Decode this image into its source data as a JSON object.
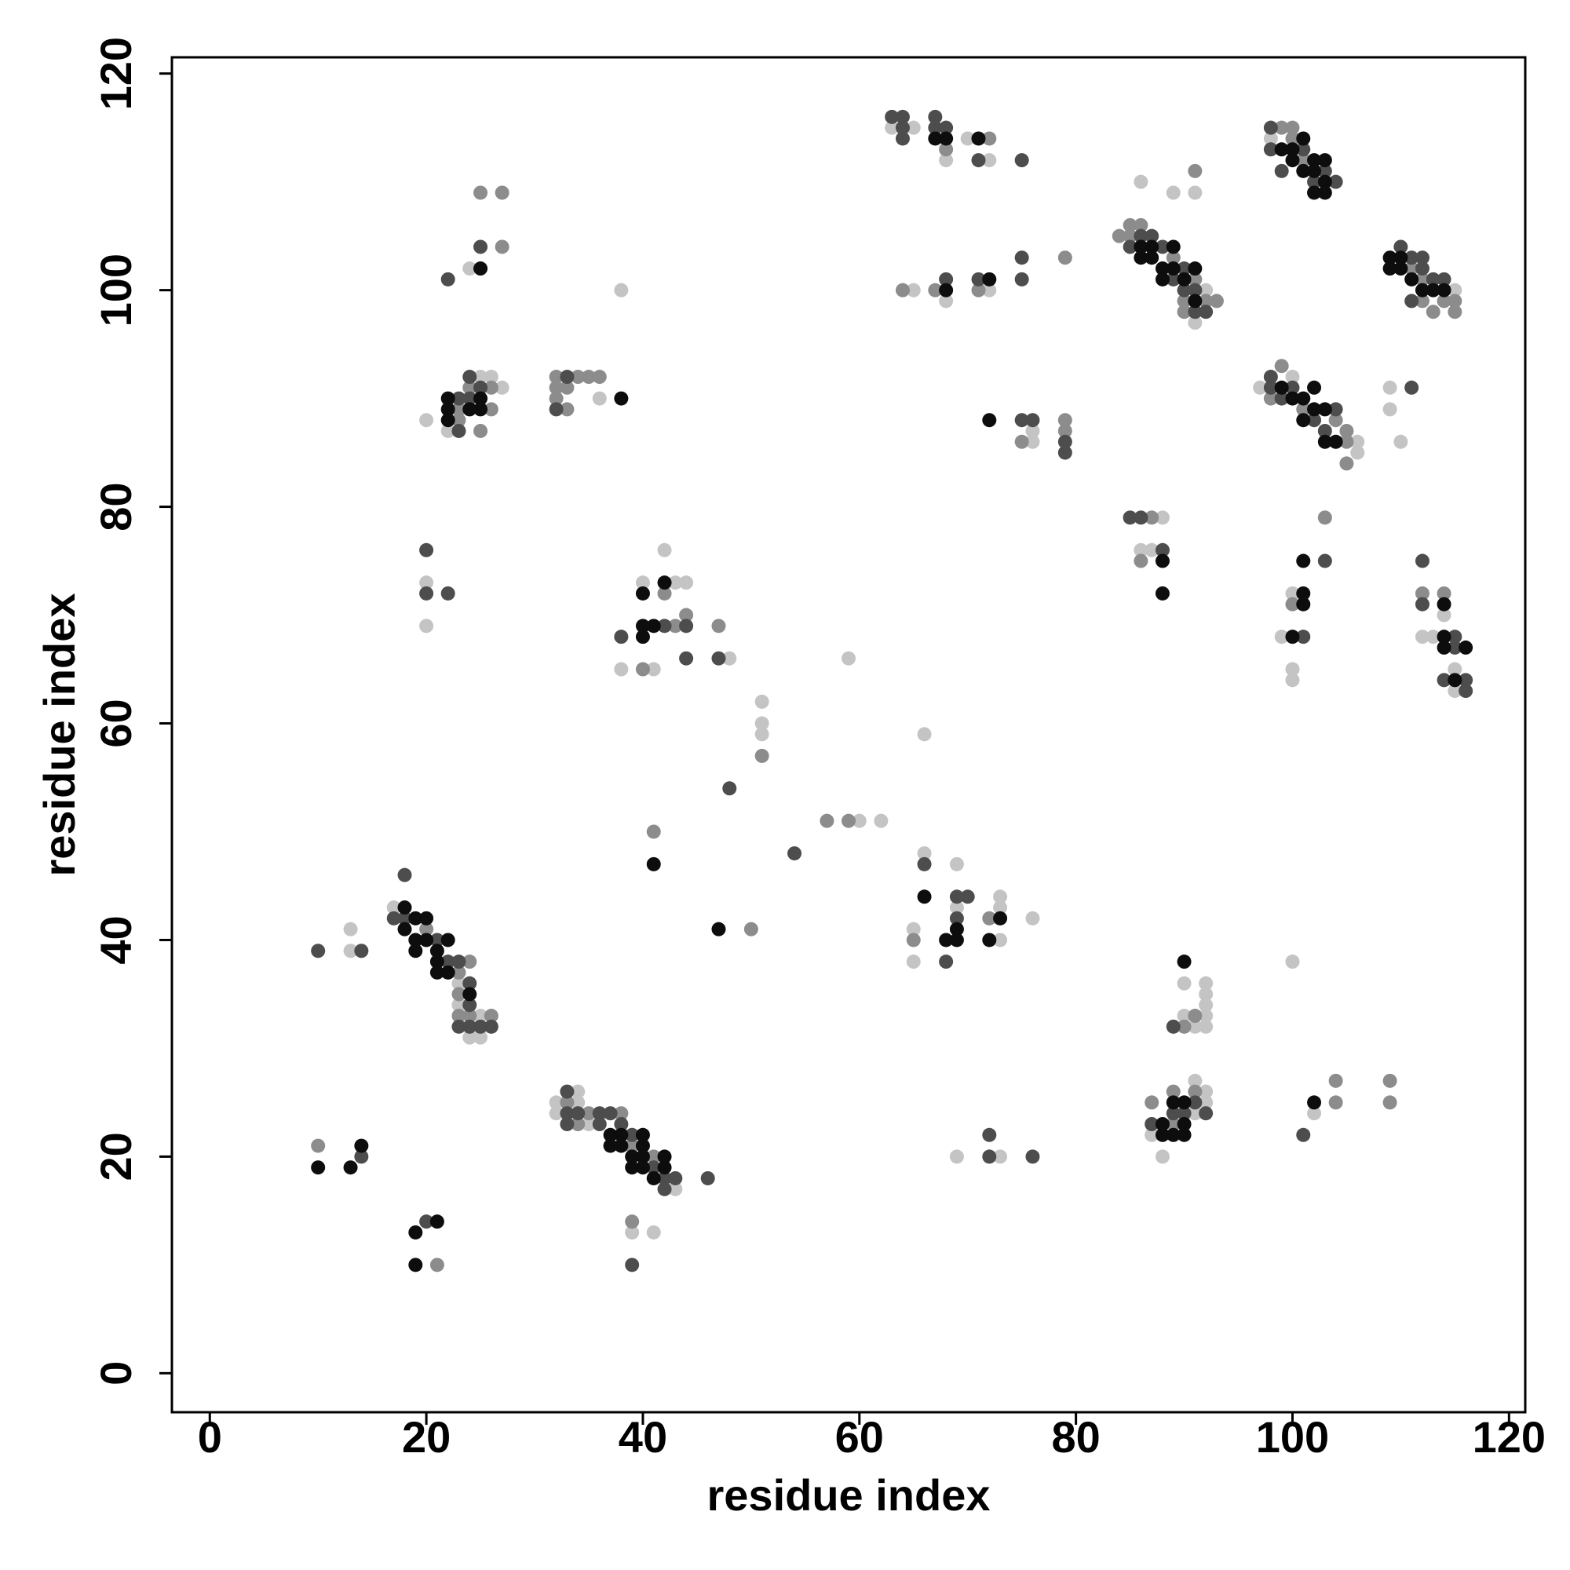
{
  "chart_data": {
    "type": "scatter",
    "xlabel": "residue index",
    "ylabel": "residue index",
    "xlim": [
      -3.5,
      121.5
    ],
    "ylim": [
      -3.6,
      121.5
    ],
    "xticks": [
      0,
      20,
      40,
      60,
      80,
      100,
      120
    ],
    "yticks": [
      0,
      20,
      40,
      60,
      80,
      100,
      120
    ],
    "grid": false,
    "series": [
      {
        "color": "#c4c4c4",
        "x": [
          13,
          13,
          17,
          23,
          23,
          24,
          25,
          25,
          20,
          22,
          25,
          26,
          27,
          24,
          20,
          20,
          36,
          38,
          32,
          32,
          34,
          34,
          35,
          43,
          39,
          41,
          38,
          40,
          41,
          42,
          43,
          44,
          48,
          51,
          51,
          51,
          60,
          62,
          59,
          66,
          65,
          65,
          66,
          69,
          69,
          73,
          73,
          73,
          76,
          69,
          73,
          63,
          65,
          68,
          70,
          72,
          65,
          68,
          72,
          76,
          76,
          91,
          92,
          86,
          89,
          91,
          97,
          100,
          106,
          106,
          98,
          115,
          109,
          109,
          110,
          86,
          87,
          88,
          99,
          100,
          100,
          100,
          112,
          113,
          114,
          115,
          115,
          100,
          87,
          88,
          91,
          91,
          92,
          92,
          90,
          90,
          91,
          92,
          92,
          92,
          92,
          92,
          102
        ],
        "values": [
          41,
          39,
          43,
          36,
          34,
          31,
          33,
          31,
          88,
          87,
          92,
          92,
          91,
          102,
          73,
          69,
          90,
          100,
          25,
          24,
          26,
          25,
          23,
          17,
          13,
          13,
          65,
          73,
          65,
          76,
          73,
          73,
          66,
          62,
          60,
          59,
          51,
          51,
          66,
          59,
          41,
          38,
          48,
          47,
          43,
          44,
          43,
          40,
          42,
          20,
          20,
          115,
          115,
          112,
          114,
          112,
          100,
          99,
          100,
          87,
          86,
          97,
          100,
          110,
          109,
          109,
          91,
          92,
          86,
          85,
          114,
          100,
          91,
          89,
          86,
          76,
          76,
          79,
          68,
          72,
          65,
          64,
          68,
          68,
          70,
          65,
          63,
          38,
          22,
          20,
          27,
          24,
          26,
          25,
          36,
          33,
          32,
          36,
          35,
          34,
          33,
          32,
          24
        ]
      },
      {
        "color": "#8c8c8c",
        "x": [
          10,
          21,
          20,
          23,
          23,
          23,
          24,
          24,
          26,
          23,
          23,
          24,
          25,
          26,
          26,
          25,
          27,
          27,
          32,
          32,
          32,
          33,
          33,
          34,
          35,
          36,
          33,
          34,
          35,
          38,
          39,
          41,
          39,
          40,
          42,
          43,
          44,
          47,
          41,
          50,
          51,
          57,
          59,
          65,
          72,
          68,
          72,
          64,
          67,
          71,
          79,
          75,
          79,
          79,
          84,
          85,
          85,
          86,
          89,
          90,
          90,
          91,
          92,
          93,
          91,
          98,
          99,
          101,
          104,
          105,
          105,
          105,
          99,
          100,
          100,
          101,
          111,
          112,
          112,
          113,
          114,
          115,
          115,
          86,
          87,
          100,
          103,
          112,
          114,
          87,
          89,
          89,
          91,
          90,
          91,
          104,
          104,
          109,
          109
        ],
        "values": [
          21,
          10,
          41,
          37,
          35,
          33,
          38,
          33,
          33,
          89,
          88,
          91,
          87,
          91,
          89,
          109,
          109,
          104,
          92,
          91,
          90,
          91,
          89,
          92,
          92,
          92,
          25,
          23,
          24,
          24,
          21,
          20,
          14,
          65,
          72,
          69,
          70,
          69,
          50,
          41,
          57,
          51,
          51,
          40,
          42,
          113,
          114,
          100,
          100,
          100,
          103,
          86,
          88,
          87,
          105,
          106,
          105,
          106,
          103,
          99,
          98,
          101,
          99,
          99,
          111,
          90,
          93,
          89,
          88,
          87,
          86,
          84,
          115,
          115,
          114,
          112,
          102,
          101,
          99,
          98,
          99,
          99,
          98,
          75,
          79,
          71,
          79,
          72,
          72,
          25,
          26,
          23,
          26,
          32,
          33,
          27,
          25,
          27,
          25
        ]
      },
      {
        "color": "#4d4d4d",
        "x": [
          14,
          20,
          10,
          14,
          17,
          18,
          21,
          22,
          23,
          23,
          24,
          24,
          24,
          25,
          26,
          18,
          23,
          23,
          24,
          24,
          25,
          22,
          25,
          20,
          20,
          22,
          32,
          33,
          33,
          33,
          33,
          34,
          36,
          36,
          37,
          38,
          39,
          41,
          42,
          42,
          43,
          46,
          39,
          38,
          42,
          44,
          44,
          47,
          48,
          54,
          66,
          68,
          69,
          69,
          70,
          72,
          72,
          76,
          63,
          64,
          64,
          64,
          67,
          67,
          68,
          71,
          75,
          68,
          71,
          75,
          75,
          75,
          76,
          79,
          79,
          85,
          86,
          87,
          88,
          89,
          90,
          90,
          91,
          91,
          92,
          98,
          98,
          99,
          100,
          102,
          103,
          104,
          98,
          98,
          99,
          101,
          102,
          103,
          104,
          110,
          111,
          111,
          112,
          112,
          113,
          114,
          111,
          85,
          86,
          88,
          101,
          103,
          112,
          112,
          114,
          115,
          115,
          116,
          116,
          87,
          89,
          90,
          91,
          92,
          89,
          101
        ],
        "values": [
          20,
          14,
          39,
          39,
          42,
          42,
          40,
          38,
          38,
          32,
          36,
          34,
          32,
          32,
          32,
          46,
          90,
          87,
          92,
          90,
          91,
          101,
          104,
          76,
          72,
          72,
          89,
          92,
          26,
          24,
          23,
          24,
          24,
          23,
          24,
          23,
          22,
          19,
          18,
          17,
          18,
          18,
          10,
          68,
          69,
          69,
          66,
          66,
          54,
          48,
          47,
          38,
          44,
          42,
          44,
          22,
          20,
          20,
          116,
          116,
          115,
          114,
          116,
          115,
          115,
          112,
          112,
          101,
          101,
          103,
          101,
          88,
          88,
          86,
          85,
          104,
          105,
          105,
          104,
          101,
          102,
          100,
          100,
          98,
          98,
          92,
          91,
          90,
          91,
          88,
          87,
          89,
          115,
          113,
          111,
          113,
          110,
          111,
          110,
          104,
          103,
          99,
          103,
          102,
          101,
          101,
          91,
          79,
          79,
          76,
          68,
          75,
          75,
          71,
          64,
          68,
          67,
          64,
          63,
          23,
          24,
          24,
          25,
          24,
          32,
          22
        ]
      },
      {
        "color": "#0d0d0d",
        "x": [
          10,
          13,
          14,
          19,
          21,
          19,
          18,
          18,
          19,
          19,
          19,
          20,
          20,
          21,
          21,
          21,
          22,
          22,
          24,
          22,
          22,
          22,
          24,
          25,
          25,
          25,
          38,
          37,
          37,
          38,
          38,
          39,
          39,
          40,
          40,
          40,
          40,
          41,
          42,
          42,
          40,
          40,
          40,
          41,
          42,
          41,
          47,
          66,
          68,
          69,
          69,
          72,
          73,
          67,
          68,
          71,
          68,
          72,
          72,
          86,
          86,
          87,
          87,
          88,
          88,
          89,
          89,
          90,
          91,
          91,
          99,
          100,
          101,
          101,
          102,
          102,
          103,
          103,
          104,
          99,
          100,
          100,
          101,
          101,
          102,
          102,
          102,
          103,
          103,
          103,
          109,
          109,
          110,
          110,
          111,
          112,
          113,
          114,
          88,
          88,
          100,
          101,
          101,
          101,
          114,
          114,
          114,
          115,
          116,
          88,
          88,
          89,
          89,
          90,
          90,
          90,
          90,
          102
        ],
        "values": [
          19,
          19,
          21,
          13,
          14,
          10,
          43,
          41,
          42,
          40,
          39,
          42,
          40,
          39,
          38,
          37,
          40,
          37,
          35,
          90,
          89,
          88,
          89,
          90,
          89,
          102,
          90,
          22,
          21,
          22,
          21,
          20,
          19,
          22,
          21,
          20,
          19,
          18,
          20,
          19,
          72,
          69,
          68,
          69,
          73,
          47,
          41,
          44,
          40,
          41,
          40,
          40,
          42,
          114,
          114,
          114,
          100,
          101,
          88,
          104,
          103,
          104,
          103,
          102,
          101,
          104,
          102,
          101,
          102,
          99,
          91,
          90,
          90,
          88,
          91,
          89,
          89,
          86,
          86,
          113,
          113,
          112,
          114,
          111,
          112,
          111,
          109,
          112,
          110,
          109,
          103,
          102,
          103,
          102,
          101,
          100,
          100,
          100,
          75,
          72,
          68,
          75,
          72,
          71,
          71,
          68,
          67,
          64,
          67,
          23,
          22,
          25,
          22,
          25,
          23,
          22,
          38,
          25
        ]
      }
    ]
  }
}
